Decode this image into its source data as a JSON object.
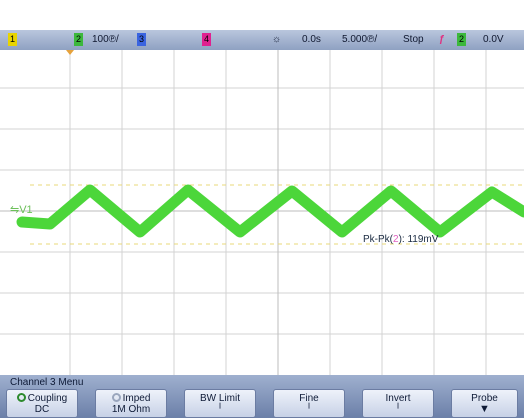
{
  "status": {
    "ch1_num": "1",
    "ch2_num": "2",
    "ch2_scale": "100℗/",
    "ch3_num": "3",
    "ch4_num": "4",
    "time_delay": "0.0s",
    "timebase": "5.000℗/",
    "run_state": "Stop",
    "trigger_source": "2",
    "trigger_level": "0.0V",
    "trigger_symbol": "ƒ",
    "sun_symbol": "☼"
  },
  "trace": {
    "label": "⇋V1",
    "color": "#4cd63a"
  },
  "measurement": {
    "prefix": "Pk-Pk(",
    "channel": "2",
    "suffix": "): 119mV"
  },
  "menu": {
    "title": "Channel 3  Menu",
    "softkeys": [
      {
        "label": "Coupling",
        "value": "DC"
      },
      {
        "label": "Imped",
        "value": "1M Ohm"
      },
      {
        "label": "BW Limit",
        "value": ""
      },
      {
        "label": "Fine",
        "value": ""
      },
      {
        "label": "Invert",
        "value": ""
      },
      {
        "label": "Probe",
        "value": ""
      }
    ]
  },
  "colors": {
    "ch1": "#e8d400",
    "ch2": "#3cb83c",
    "ch3": "#3a64e0",
    "ch4": "#e02090",
    "trigger": "#e03080"
  }
}
